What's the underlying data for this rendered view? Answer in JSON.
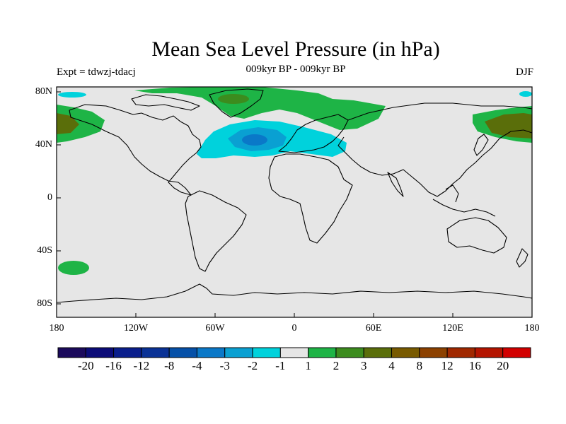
{
  "title": "Mean Sea Level Pressure (in hPa)",
  "subtitle": "009kyr BP - 009kyr BP",
  "experiment": "Expt = tdwzj-tdacj",
  "season": "DJF",
  "lat_labels": [
    "80N",
    "40N",
    "0",
    "40S",
    "80S"
  ],
  "lon_labels": [
    "180",
    "120W",
    "60W",
    "0",
    "60E",
    "120E",
    "180"
  ],
  "colorbar": {
    "colors": [
      "#1b0a5c",
      "#0c0c78",
      "#0a1e8c",
      "#0a3296",
      "#0550a8",
      "#0a78c8",
      "#0aa0d2",
      "#00d2dc",
      "#e6e6e6",
      "#1eb446",
      "#3c8c1e",
      "#5a6e0a",
      "#785a00",
      "#8c4100",
      "#a02800",
      "#b41400",
      "#d20000"
    ],
    "labels": [
      "-20",
      "-16",
      "-12",
      "-8",
      "-4",
      "-3",
      "-2",
      "-1",
      "1",
      "2",
      "3",
      "4",
      "8",
      "12",
      "16",
      "20"
    ]
  },
  "map": {
    "background_color": "#e6e6e6",
    "anomalies": [
      {
        "name": "north-atlantic-low",
        "color": "#00d2dc"
      },
      {
        "name": "north-atlantic-core",
        "color": "#0aa0d2"
      },
      {
        "name": "arctic-high",
        "color": "#1eb446"
      },
      {
        "name": "greenland-high-core",
        "color": "#3c8c1e"
      },
      {
        "name": "north-pacific-high-west",
        "color": "#1eb446"
      },
      {
        "name": "north-pacific-high-east",
        "color": "#1eb446"
      },
      {
        "name": "north-pacific-high-core",
        "color": "#5a6e0a"
      },
      {
        "name": "south-pacific-high",
        "color": "#1eb446"
      }
    ]
  }
}
